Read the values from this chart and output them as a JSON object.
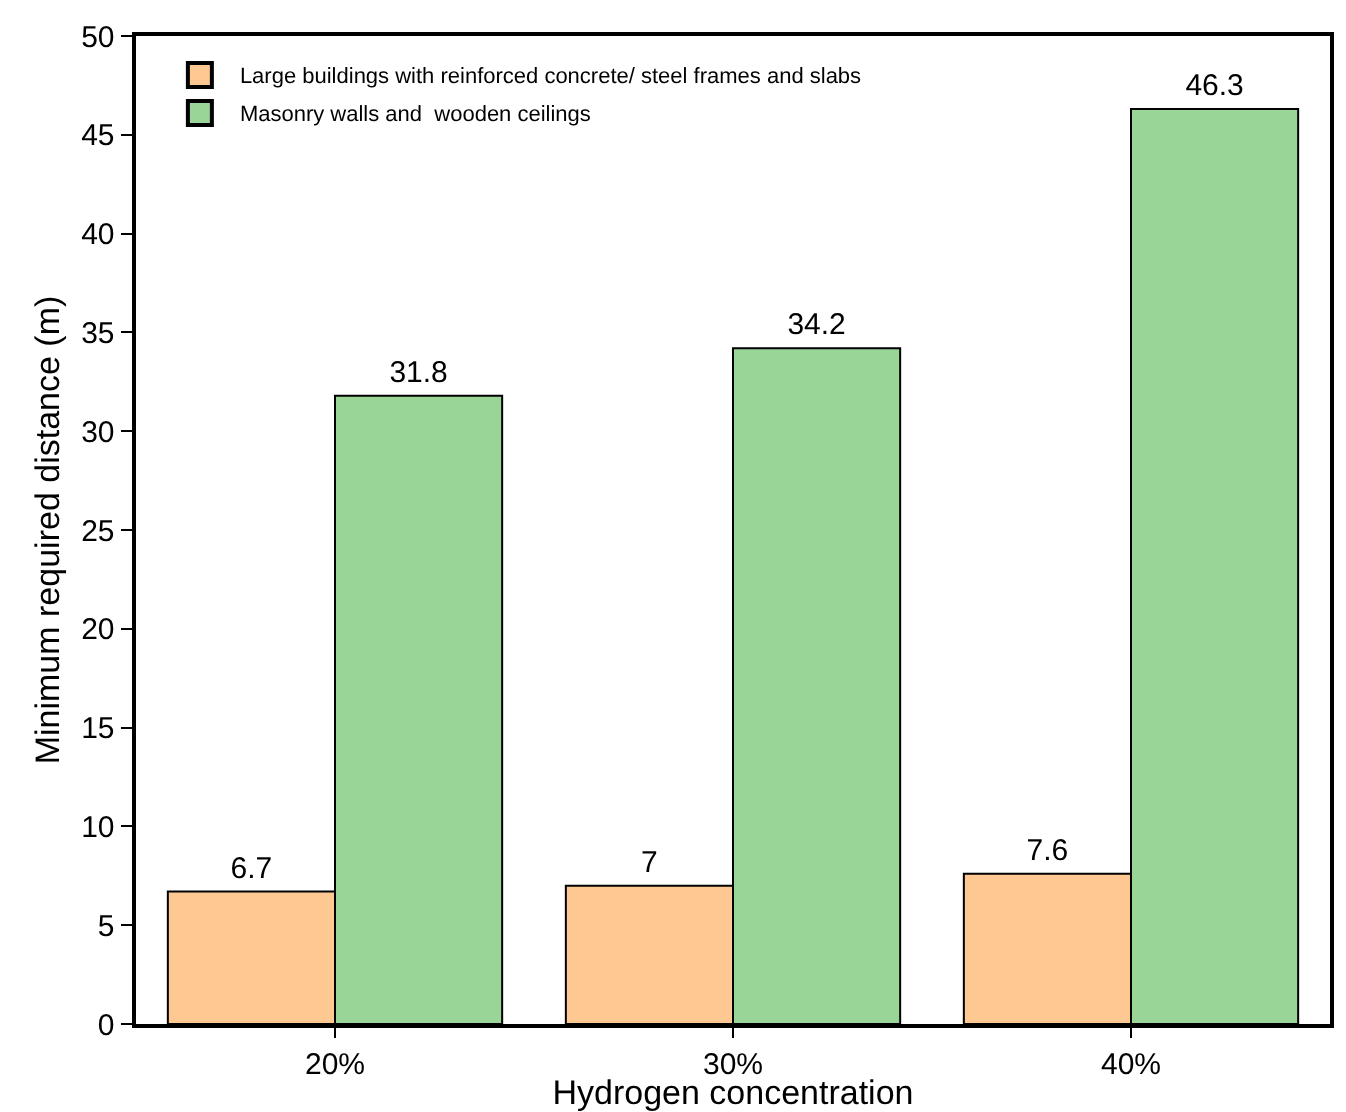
{
  "chart_data": {
    "type": "bar",
    "xlabel": "Hydrogen concentration",
    "ylabel": "Minimum required distance (m)",
    "categories": [
      "20%",
      "30%",
      "40%"
    ],
    "series": [
      {
        "name": "Large buildings with reinforced concrete/ steel frames and slabs",
        "color": "#fdc891",
        "values": [
          6.7,
          7,
          7.6
        ]
      },
      {
        "name": "Masonry walls and  wooden ceilings",
        "color": "#9ad598",
        "values": [
          31.8,
          34.2,
          46.3
        ]
      }
    ],
    "ylim": [
      0,
      50
    ],
    "yticks": [
      0,
      5,
      10,
      15,
      20,
      25,
      30,
      35,
      40,
      45,
      50
    ],
    "grid": false,
    "legend": "top left",
    "data_labels": true
  }
}
